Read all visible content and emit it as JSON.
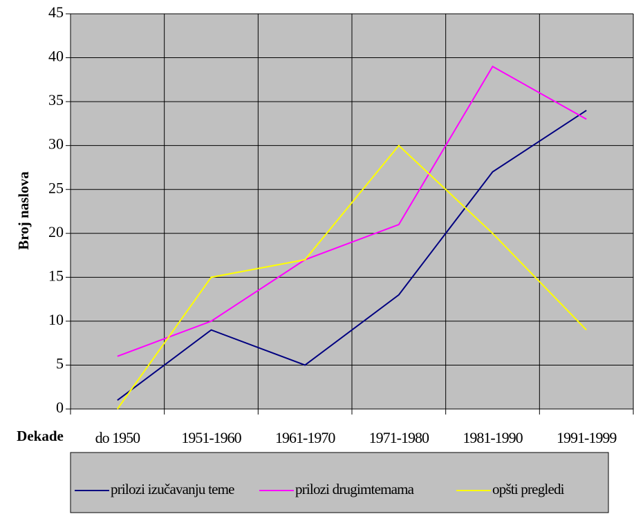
{
  "chart_data": {
    "type": "line",
    "y_label": "Broj naslova",
    "x_label": "Dekade",
    "categories": [
      "do 1950",
      "1951-1960",
      "1961-1970",
      "1971-1980",
      "1981-1990",
      "1991-1999"
    ],
    "series": [
      {
        "name": "prilozi izučavanju teme",
        "color": "#000080",
        "values": [
          1,
          9,
          5,
          13,
          27,
          34
        ]
      },
      {
        "name": "prilozi drugimtemama",
        "color": "#ff00ff",
        "values": [
          6,
          10,
          17,
          21,
          39,
          33
        ]
      },
      {
        "name": "opšti pregledi",
        "color": "#ffff00",
        "values": [
          0,
          15,
          17,
          30,
          20,
          9
        ]
      }
    ],
    "ylim": [
      0,
      45
    ],
    "yticks": [
      0,
      5,
      10,
      15,
      20,
      25,
      30,
      35,
      40,
      45
    ],
    "grid": true,
    "background": "#c0c0c0",
    "legend": "bottom"
  }
}
